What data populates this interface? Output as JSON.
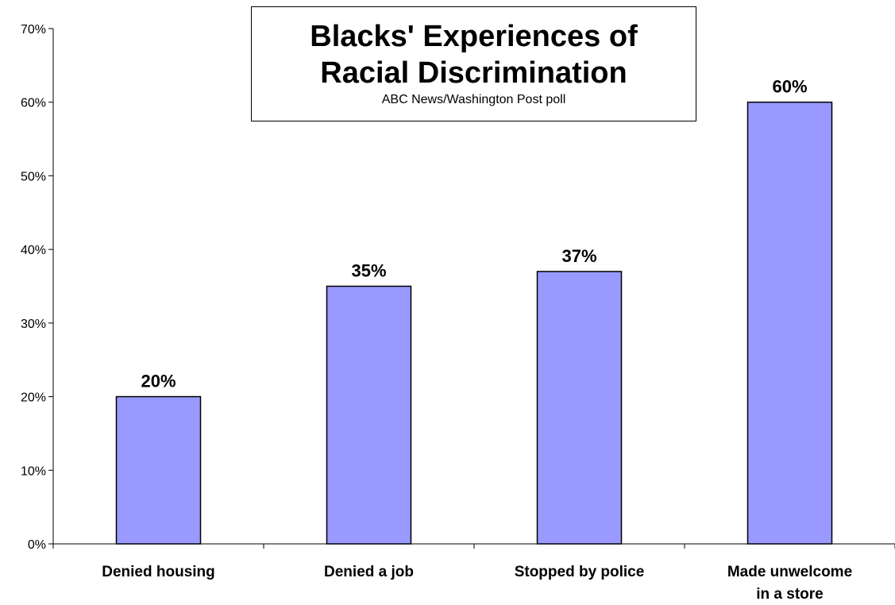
{
  "chart_data": {
    "type": "bar",
    "title_lines": [
      "Blacks' Experiences of",
      "Racial Discrimination"
    ],
    "subtitle": "ABC News/Washington Post poll",
    "categories": [
      [
        "Denied housing"
      ],
      [
        "Denied a job"
      ],
      [
        "Stopped by police"
      ],
      [
        "Made unwelcome",
        "in a store"
      ]
    ],
    "values": [
      20,
      35,
      37,
      60
    ],
    "data_labels": [
      "20%",
      "35%",
      "37%",
      "60%"
    ],
    "ylim": [
      0,
      70
    ],
    "yticks": [
      0,
      10,
      20,
      30,
      40,
      50,
      60,
      70
    ],
    "ytick_labels": [
      "0%",
      "10%",
      "20%",
      "30%",
      "40%",
      "50%",
      "60%",
      "70%"
    ],
    "xlabel": "",
    "ylabel": "",
    "grid": false,
    "legend": "none",
    "colors": {
      "bar_fill": "#9999ff",
      "bar_stroke": "#000000",
      "axis": "#000000"
    }
  }
}
